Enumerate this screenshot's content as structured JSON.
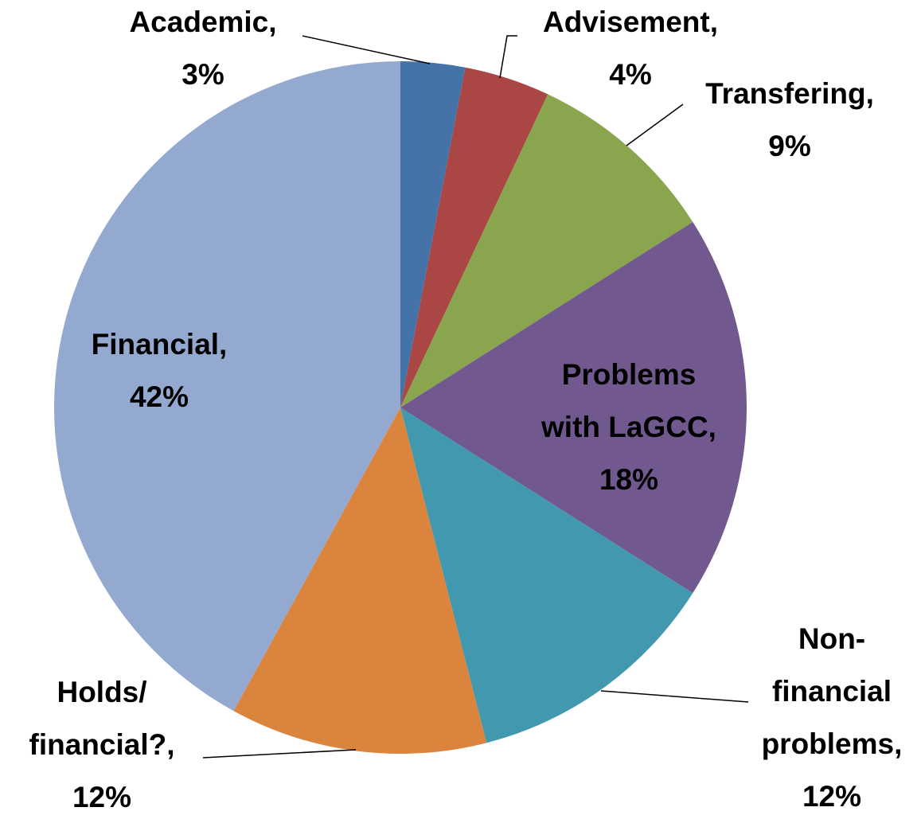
{
  "chart_data": {
    "type": "pie",
    "labels": [
      [
        "Academic,",
        "3%"
      ],
      [
        "Advisement,",
        "4%"
      ],
      [
        "Transfering,",
        "9%"
      ],
      [
        "Problems",
        "with LaGCC,",
        "18%"
      ],
      [
        "Non-",
        "financial",
        "problems,",
        "12%"
      ],
      [
        "Holds/",
        "financial?,",
        "12%"
      ],
      [
        "Financial,",
        "42%"
      ]
    ],
    "values": [
      3,
      4,
      9,
      18,
      12,
      12,
      42
    ],
    "colors": [
      "#4572a7",
      "#aa4643",
      "#89a54e",
      "#71588f",
      "#4198af",
      "#db843d",
      "#93a9cf"
    ],
    "label_colors": [
      "#000000",
      "#000000",
      "#000000",
      "#ffffff",
      "#000000",
      "#000000",
      "#000000"
    ]
  }
}
